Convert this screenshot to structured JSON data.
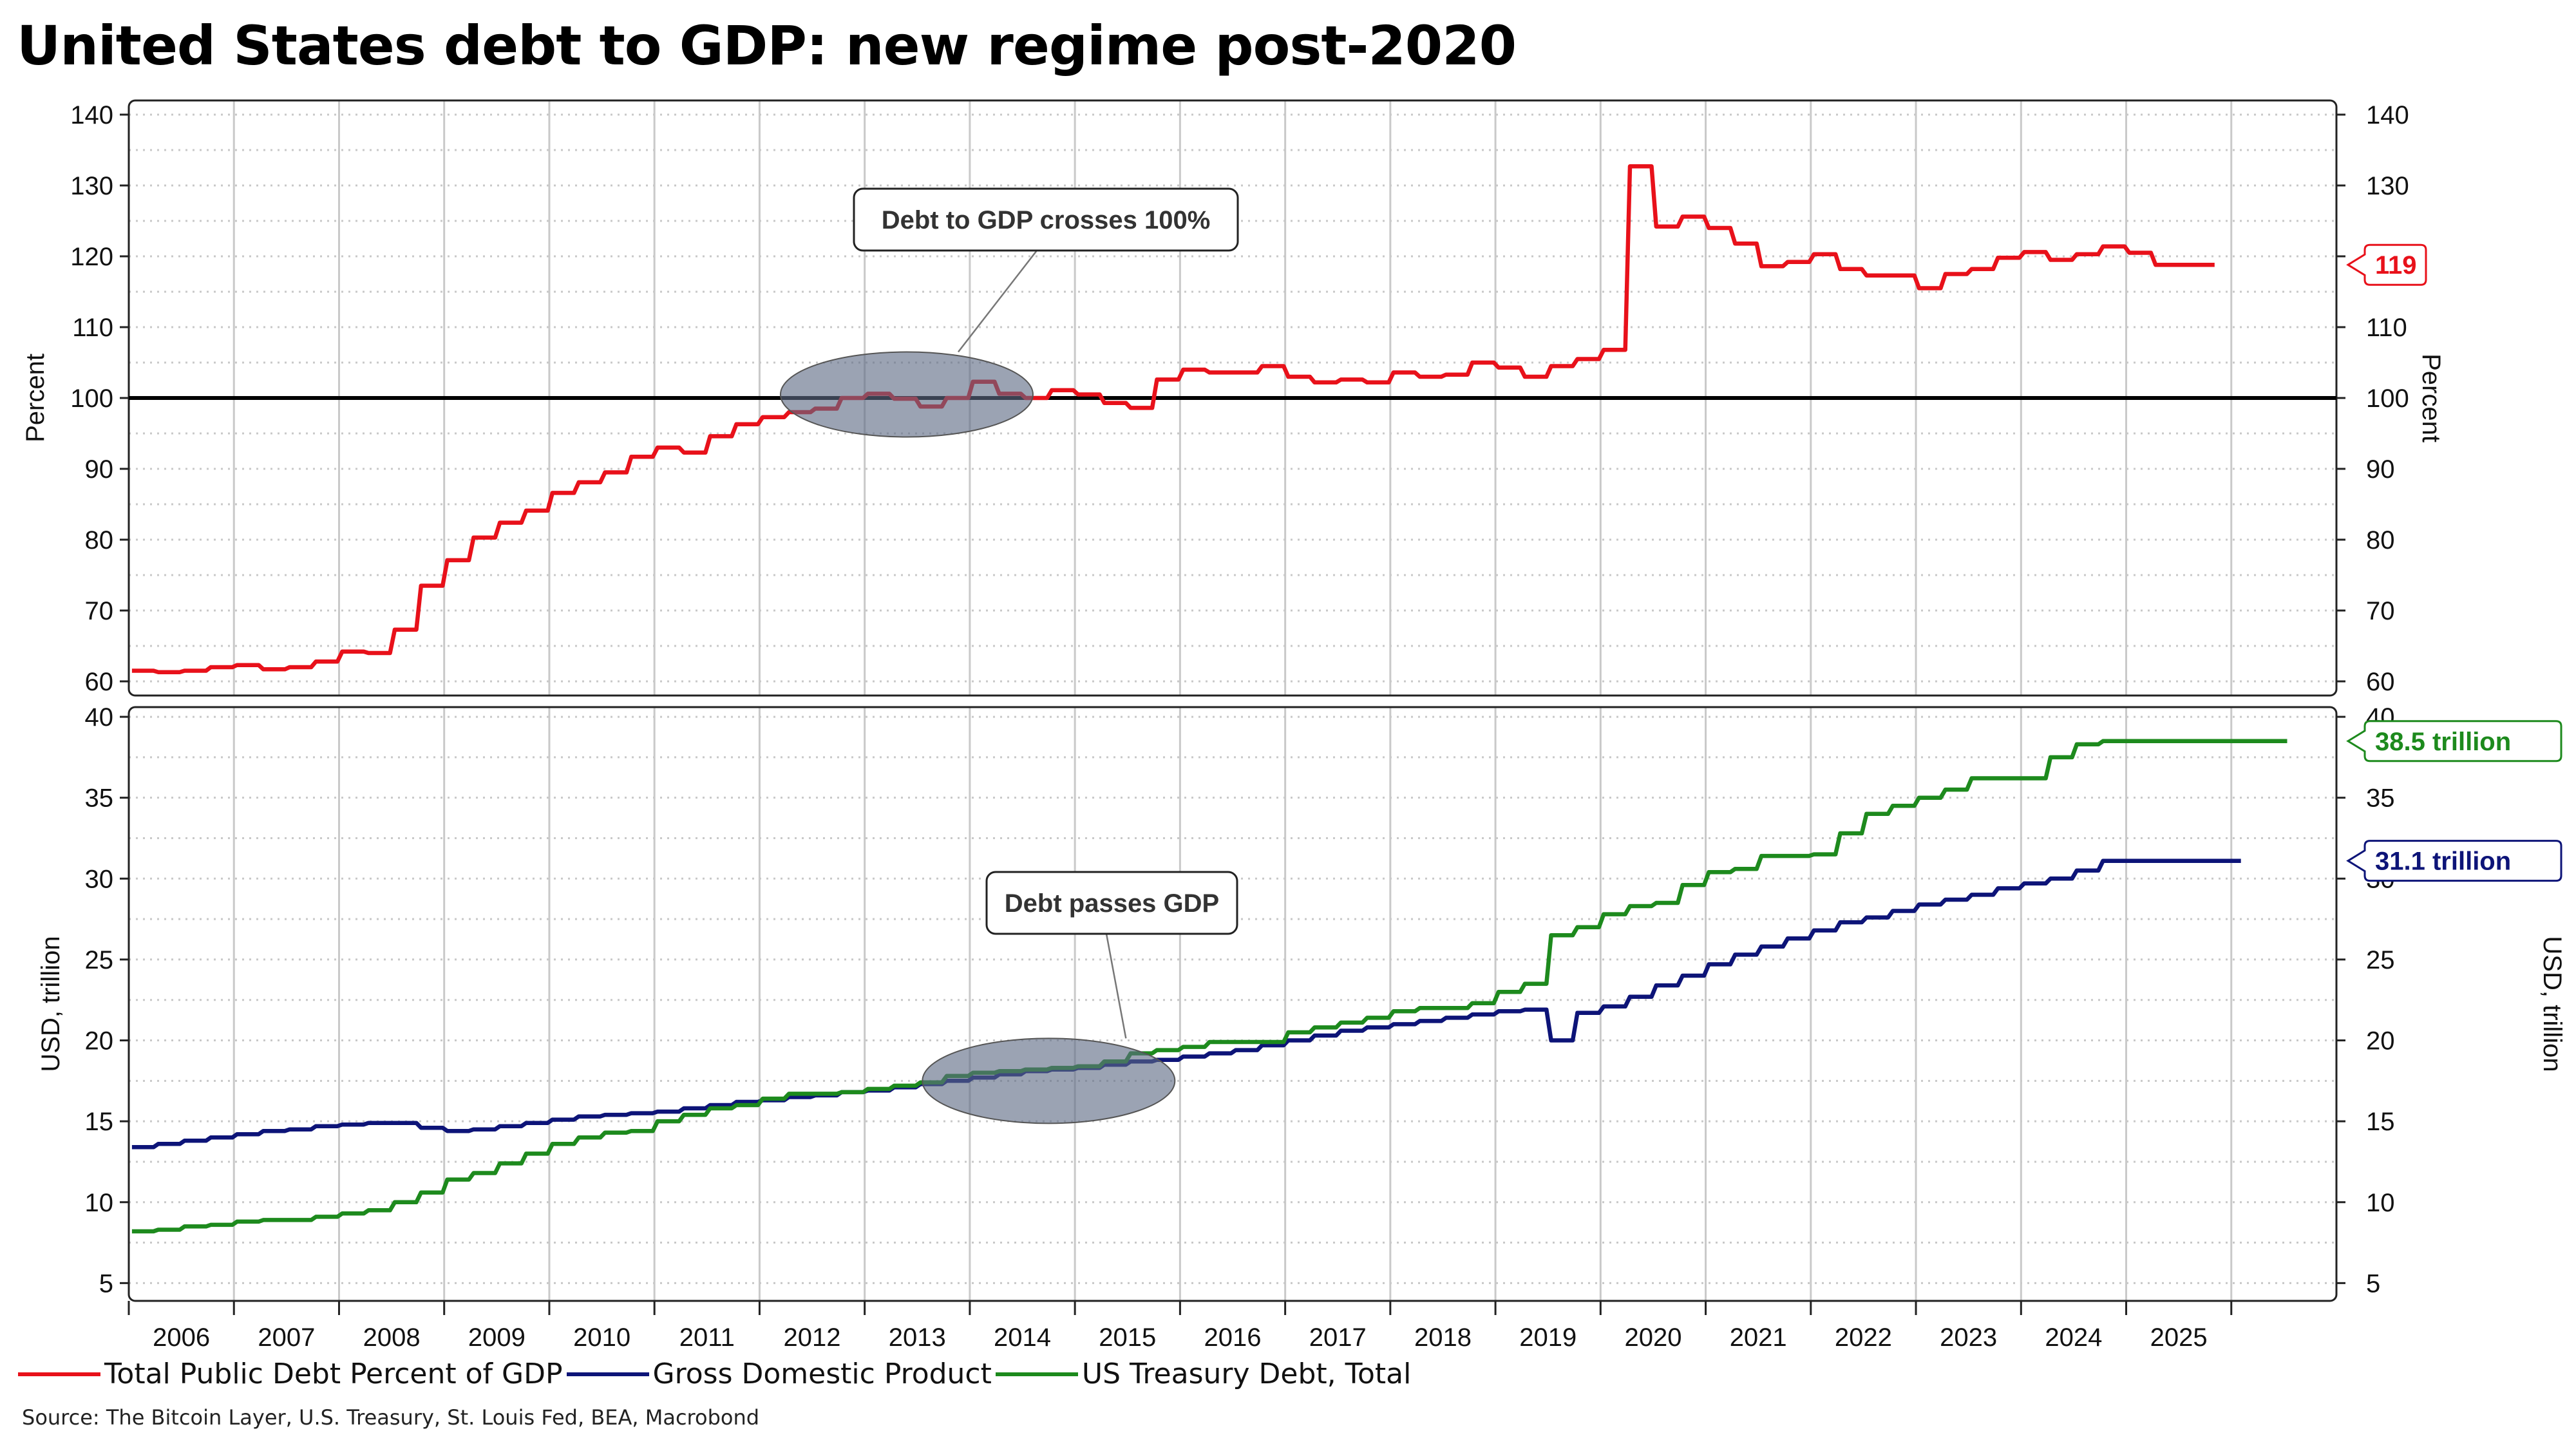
{
  "title": "United States debt to GDP: new regime post-2020",
  "source": "Source: The Bitcoin Layer, U.S. Treasury, St. Louis Fed, BEA, Macrobond",
  "colors": {
    "debt_pct": "#e8111a",
    "gdp": "#0d1478",
    "debt_total": "#1d8a1d",
    "callout_fill": "#5d6a85"
  },
  "legend": [
    {
      "label": "Total Public Debt Percent of GDP",
      "color": "#e8111a"
    },
    {
      "label": "Gross Domestic Product",
      "color": "#0d1478"
    },
    {
      "label": "US Treasury Debt, Total",
      "color": "#1d8a1d"
    }
  ],
  "chart_data": [
    {
      "type": "line",
      "panel": "top",
      "ylabel": "Percent",
      "ylim": [
        58,
        142
      ],
      "yticks": [
        60,
        70,
        80,
        90,
        100,
        110,
        120,
        130,
        140
      ],
      "xlim": [
        2005.5,
        2026.5
      ],
      "reference_line": 100,
      "annotation": {
        "text": "Debt to GDP crosses 100%",
        "center": [
          2012.9,
          100.5
        ]
      },
      "series": [
        {
          "name": "Total Public Debt Percent of GDP",
          "color": "#e8111a",
          "end_label": "119",
          "x": [
            2005.53,
            2005.78,
            2006.03,
            2006.28,
            2006.53,
            2006.78,
            2007.03,
            2007.28,
            2007.53,
            2007.78,
            2008.03,
            2008.28,
            2008.53,
            2008.78,
            2009.03,
            2009.28,
            2009.53,
            2009.78,
            2010.03,
            2010.28,
            2010.53,
            2010.78,
            2011.03,
            2011.28,
            2011.53,
            2011.78,
            2012.03,
            2012.28,
            2012.53,
            2012.78,
            2013.03,
            2013.28,
            2013.53,
            2013.78,
            2014.03,
            2014.28,
            2014.53,
            2014.78,
            2015.03,
            2015.28,
            2015.53,
            2015.78,
            2016.03,
            2016.28,
            2016.53,
            2016.78,
            2017.03,
            2017.28,
            2017.53,
            2017.78,
            2018.03,
            2018.28,
            2018.53,
            2018.78,
            2019.03,
            2019.28,
            2019.53,
            2019.78,
            2020.03,
            2020.28,
            2020.53,
            2020.78,
            2021.03,
            2021.28,
            2021.53,
            2021.78,
            2022.03,
            2022.28,
            2022.53,
            2022.78,
            2023.03,
            2023.28,
            2023.53,
            2023.78,
            2024.03,
            2024.28,
            2024.53,
            2024.78,
            2025.03,
            2025.28
          ],
          "y": [
            61.5,
            61.3,
            61.5,
            62.0,
            62.3,
            61.7,
            62.0,
            62.8,
            64.2,
            64.0,
            67.3,
            73.5,
            77.1,
            80.3,
            82.4,
            84.1,
            86.6,
            88.1,
            89.5,
            91.7,
            93.0,
            92.3,
            94.6,
            96.3,
            97.3,
            98.0,
            98.5,
            100.0,
            100.6,
            99.9,
            98.8,
            100.0,
            102.3,
            100.6,
            100.0,
            101.1,
            100.5,
            99.3,
            98.6,
            102.6,
            104.0,
            103.6,
            103.6,
            104.5,
            103.0,
            102.2,
            102.6,
            102.2,
            103.6,
            103.0,
            103.3,
            105.0,
            104.3,
            103.0,
            104.5,
            105.5,
            106.8,
            132.7,
            124.2,
            125.6,
            124.0,
            121.8,
            118.6,
            119.2,
            120.3,
            118.2,
            117.3,
            117.3,
            115.5,
            117.5,
            118.2,
            119.8,
            120.6,
            119.5,
            120.3,
            121.4,
            120.5,
            118.8,
            118.8,
            118.8
          ]
        }
      ]
    },
    {
      "type": "line",
      "panel": "bottom",
      "ylabel": "USD, trillion",
      "ylim": [
        3.9,
        40.6
      ],
      "yticks": [
        5,
        10,
        15,
        20,
        25,
        30,
        35,
        40
      ],
      "xlim": [
        2005.5,
        2026.5
      ],
      "x_tick_labels": [
        "2006",
        "2007",
        "2008",
        "2009",
        "2010",
        "2011",
        "2012",
        "2013",
        "2014",
        "2015",
        "2016",
        "2017",
        "2018",
        "2019",
        "2020",
        "2021",
        "2022",
        "2023",
        "2024",
        "2025"
      ],
      "annotation": {
        "text": "Debt passes GDP",
        "center": [
          2014.25,
          17.5
        ]
      },
      "series": [
        {
          "name": "Gross Domestic Product",
          "color": "#0d1478",
          "end_label": "31.1 trillion",
          "x": [
            2005.53,
            2005.78,
            2006.03,
            2006.28,
            2006.53,
            2006.78,
            2007.03,
            2007.28,
            2007.53,
            2007.78,
            2008.03,
            2008.28,
            2008.53,
            2008.78,
            2009.03,
            2009.28,
            2009.53,
            2009.78,
            2010.03,
            2010.28,
            2010.53,
            2010.78,
            2011.03,
            2011.28,
            2011.53,
            2011.78,
            2012.03,
            2012.28,
            2012.53,
            2012.78,
            2013.03,
            2013.28,
            2013.53,
            2013.78,
            2014.03,
            2014.28,
            2014.53,
            2014.78,
            2015.03,
            2015.28,
            2015.53,
            2015.78,
            2016.03,
            2016.28,
            2016.53,
            2016.78,
            2017.03,
            2017.28,
            2017.53,
            2017.78,
            2018.03,
            2018.28,
            2018.53,
            2018.78,
            2019.03,
            2019.28,
            2019.53,
            2019.78,
            2020.03,
            2020.28,
            2020.53,
            2020.78,
            2021.03,
            2021.28,
            2021.53,
            2021.78,
            2022.03,
            2022.28,
            2022.53,
            2022.78,
            2023.03,
            2023.28,
            2023.53,
            2023.78,
            2024.03,
            2024.28,
            2024.53,
            2024.78,
            2025.03,
            2025.28,
            2025.53
          ],
          "y": [
            13.4,
            13.6,
            13.8,
            14.0,
            14.2,
            14.4,
            14.5,
            14.7,
            14.8,
            14.9,
            14.9,
            14.6,
            14.4,
            14.5,
            14.7,
            14.9,
            15.1,
            15.3,
            15.4,
            15.5,
            15.6,
            15.8,
            16.0,
            16.2,
            16.3,
            16.5,
            16.6,
            16.8,
            16.9,
            17.1,
            17.3,
            17.5,
            17.7,
            17.9,
            18.1,
            18.2,
            18.3,
            18.5,
            18.7,
            18.8,
            19.0,
            19.2,
            19.4,
            19.7,
            20.0,
            20.3,
            20.6,
            20.8,
            21.0,
            21.2,
            21.4,
            21.6,
            21.8,
            21.9,
            20.0,
            21.7,
            22.1,
            22.7,
            23.4,
            24.0,
            24.7,
            25.3,
            25.8,
            26.3,
            26.8,
            27.3,
            27.6,
            28.0,
            28.4,
            28.7,
            29.0,
            29.4,
            29.7,
            30.0,
            30.5,
            31.1,
            31.1,
            31.1,
            31.1,
            31.1,
            31.1
          ]
        },
        {
          "name": "US Treasury Debt, Total",
          "color": "#1d8a1d",
          "end_label": "38.5 trillion",
          "x": [
            2005.53,
            2005.78,
            2006.03,
            2006.28,
            2006.53,
            2006.78,
            2007.03,
            2007.28,
            2007.53,
            2007.78,
            2008.03,
            2008.28,
            2008.53,
            2008.78,
            2009.03,
            2009.28,
            2009.53,
            2009.78,
            2010.03,
            2010.28,
            2010.53,
            2010.78,
            2011.03,
            2011.28,
            2011.53,
            2011.78,
            2012.03,
            2012.28,
            2012.53,
            2012.78,
            2013.03,
            2013.28,
            2013.53,
            2013.78,
            2014.03,
            2014.28,
            2014.53,
            2014.78,
            2015.03,
            2015.28,
            2015.53,
            2015.78,
            2016.03,
            2016.28,
            2016.53,
            2016.78,
            2017.03,
            2017.28,
            2017.53,
            2017.78,
            2018.03,
            2018.28,
            2018.53,
            2018.78,
            2019.03,
            2019.28,
            2019.53,
            2019.78,
            2020.03,
            2020.28,
            2020.53,
            2020.78,
            2021.03,
            2021.28,
            2021.53,
            2021.78,
            2022.03,
            2022.28,
            2022.53,
            2022.78,
            2023.03,
            2023.28,
            2023.53,
            2023.78,
            2024.03,
            2024.28,
            2024.53,
            2024.78,
            2025.03,
            2025.28,
            2025.53,
            2025.78,
            2025.97
          ],
          "y": [
            8.2,
            8.3,
            8.5,
            8.6,
            8.8,
            8.9,
            8.9,
            9.1,
            9.3,
            9.5,
            10.0,
            10.6,
            11.4,
            11.8,
            12.4,
            13.0,
            13.6,
            14.0,
            14.3,
            14.4,
            15.0,
            15.4,
            15.8,
            16.0,
            16.4,
            16.7,
            16.7,
            16.8,
            17.0,
            17.2,
            17.4,
            17.8,
            18.0,
            18.1,
            18.2,
            18.3,
            18.4,
            18.7,
            19.2,
            19.4,
            19.6,
            19.9,
            19.9,
            19.9,
            20.5,
            20.8,
            21.1,
            21.4,
            21.8,
            22.0,
            22.0,
            22.3,
            23.0,
            23.5,
            26.5,
            27.0,
            27.8,
            28.3,
            28.5,
            29.6,
            30.4,
            30.6,
            31.4,
            31.4,
            31.5,
            32.8,
            34.0,
            34.5,
            35.0,
            35.5,
            36.2,
            36.2,
            36.2,
            37.5,
            38.3,
            38.5,
            38.5,
            38.5,
            38.5,
            38.5,
            38.5,
            38.5,
            38.5
          ]
        }
      ]
    }
  ]
}
